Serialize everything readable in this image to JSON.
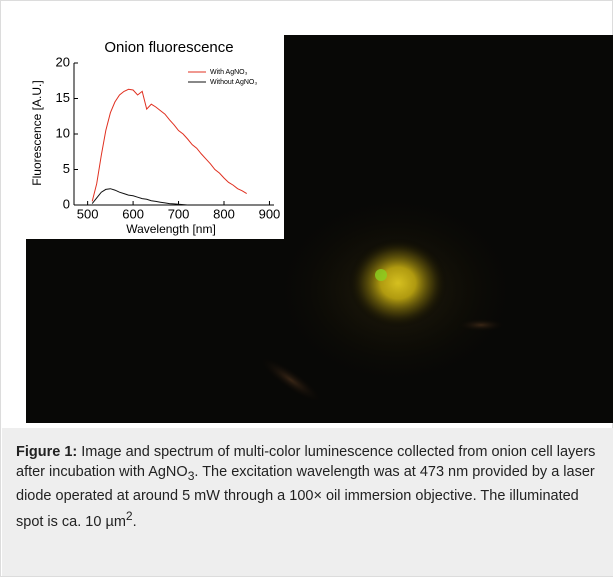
{
  "chart_data": {
    "type": "line",
    "title": "Onion fluorescence",
    "x_label": "Wavelength [nm]",
    "y_label": "Fluorescence [A.U.]",
    "xlim": [
      470,
      910
    ],
    "xticks": [
      500,
      600,
      700,
      800,
      900
    ],
    "ylim": [
      0,
      20
    ],
    "yticks": [
      0,
      5,
      10,
      15,
      20
    ],
    "legend": "top-right",
    "series": [
      {
        "name": "With AgNO₃",
        "color": "#e03020",
        "x": [
          510,
          520,
          530,
          540,
          550,
          560,
          570,
          580,
          590,
          600,
          610,
          620,
          630,
          640,
          650,
          660,
          670,
          680,
          690,
          700,
          710,
          720,
          730,
          740,
          750,
          760,
          770,
          780,
          790,
          800,
          810,
          820,
          830,
          840,
          850
        ],
        "values": [
          0.5,
          3,
          7,
          10.5,
          13,
          14.5,
          15.5,
          16,
          16.3,
          16.2,
          15.5,
          16,
          13.5,
          14.2,
          13.8,
          13.3,
          12.8,
          12,
          11.3,
          10.5,
          10,
          9.3,
          8.5,
          8,
          7.2,
          6.5,
          5.8,
          5,
          4.5,
          3.8,
          3.2,
          2.8,
          2.3,
          2,
          1.6
        ]
      },
      {
        "name": "Without AgNO₃",
        "color": "#111111",
        "x": [
          510,
          520,
          530,
          540,
          550,
          560,
          570,
          580,
          590,
          600,
          610,
          620,
          630,
          640,
          650,
          660,
          670,
          680,
          690,
          700,
          710,
          720
        ],
        "values": [
          0.2,
          1,
          1.8,
          2.2,
          2.3,
          2.1,
          1.8,
          1.6,
          1.4,
          1.3,
          1.1,
          0.9,
          0.8,
          0.6,
          0.5,
          0.4,
          0.3,
          0.2,
          0.15,
          0.1,
          0.05,
          0
        ]
      }
    ]
  },
  "caption": {
    "label": "Figure 1:",
    "parts": [
      "Image and spectrum of multi-color luminescence collected from onion cell layers after incubation with AgNO",
      "3",
      ". The excitation wavelength was at 473 nm provided by a laser diode operated at around 5 mW through a 100× oil immersion objective. The illuminated spot is ca. 10 µm",
      "2",
      "."
    ]
  }
}
